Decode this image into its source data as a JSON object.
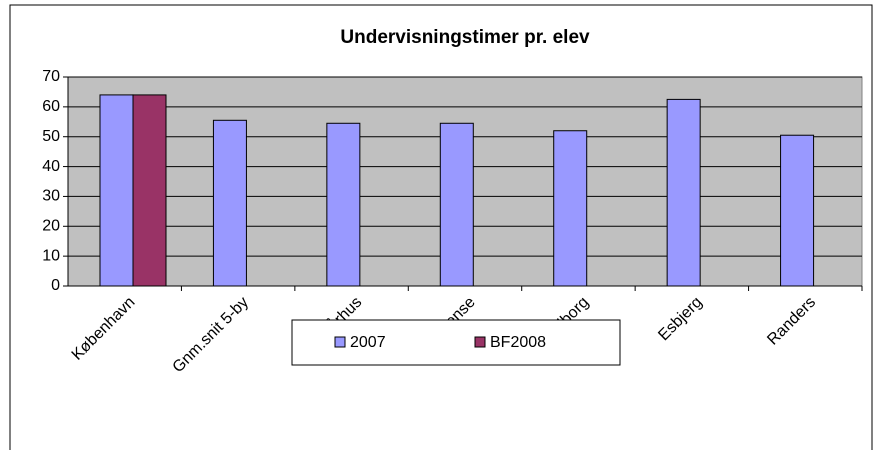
{
  "chart_data": {
    "type": "bar",
    "title": "Undervisningstimer pr. elev",
    "categories": [
      "København",
      "Gnm.snit 5-by",
      "Århus",
      "Odense",
      "Aalborg",
      "Esbjerg",
      "Randers"
    ],
    "series": [
      {
        "name": "2007",
        "color": "#9999ff",
        "values": [
          64,
          55.5,
          54.5,
          54.5,
          52,
          62.5,
          50.5
        ]
      },
      {
        "name": "BF2008",
        "color": "#993366",
        "values": [
          64,
          null,
          null,
          null,
          null,
          null,
          null
        ]
      }
    ],
    "ylim": [
      0,
      70
    ],
    "yticks": [
      0,
      10,
      20,
      30,
      40,
      50,
      60,
      70
    ],
    "grid": true,
    "legend": "bottom"
  }
}
